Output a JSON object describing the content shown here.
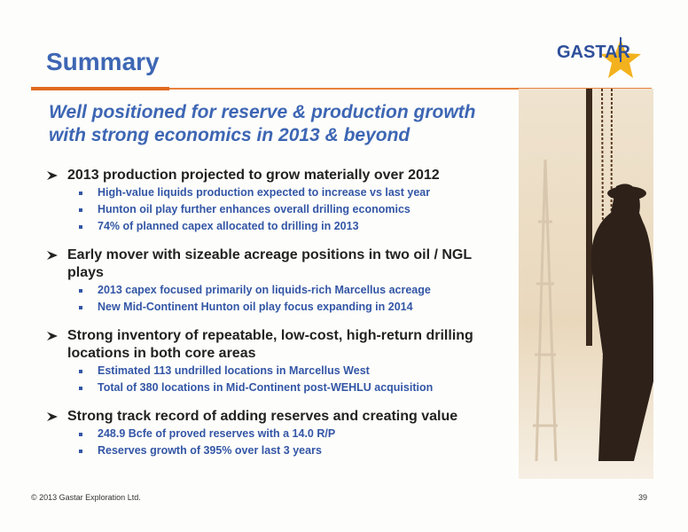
{
  "header": {
    "title": "Summary",
    "logo": "GASTAR"
  },
  "subtitle": [
    "Well positioned for reserve & production growth",
    "with strong economics in 2013 & beyond"
  ],
  "sections": [
    {
      "heading": "2013 production projected to grow materially over 2012",
      "items": [
        "High-value liquids production expected to increase vs last year",
        "Hunton oil play further enhances overall drilling economics",
        "74% of planned capex allocated to drilling in 2013"
      ]
    },
    {
      "heading": "Early mover with sizeable acreage positions in two oil / NGL plays",
      "items": [
        "2013 capex focused primarily on liquids-rich Marcellus acreage",
        "New Mid-Continent Hunton oil play focus expanding in 2014"
      ]
    },
    {
      "heading": "Strong inventory of repeatable, low-cost, high-return drilling locations in both core areas",
      "items": [
        "Estimated 113 undrilled locations in Marcellus West",
        "Total of 380 locations in Mid-Continent post-WEHLU acquisition"
      ]
    },
    {
      "heading": "Strong track record of adding reserves and creating value",
      "items": [
        "248.9 Bcfe of proved reserves with a 14.0 R/P",
        "Reserves growth of 395% over last 3 years"
      ]
    }
  ],
  "footer": {
    "copyright": "© 2013 Gastar Exploration Ltd.",
    "page": "39"
  }
}
